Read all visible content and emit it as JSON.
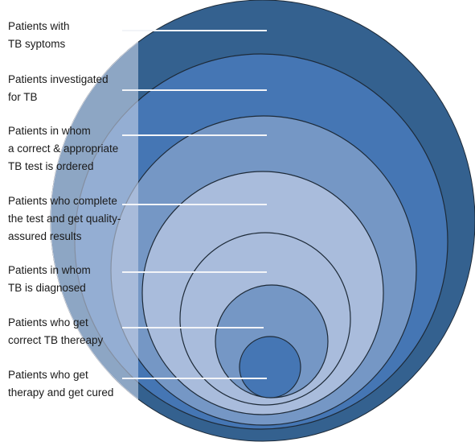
{
  "stages": [
    {
      "label": "Patients with\nTB syptoms",
      "color": "#34618f"
    },
    {
      "label": "Patients investigated\nfor TB",
      "color": "#4576b4"
    },
    {
      "label": "Patients in whom\na correct & appropriate\nTB test is ordered",
      "color": "#7597c5"
    },
    {
      "label": "Patients who complete\nthe test and get quality-\nassured results",
      "color": "#a9bcdc"
    },
    {
      "label": "Patients in whom\nTB is diagnosed",
      "color": "#a9bcdc"
    },
    {
      "label": "Patients who get\ncorrect TB thereapy",
      "color": "#7597c5"
    },
    {
      "label": "Patients who get\ntherapy and get cured",
      "color": "#4576b4"
    }
  ],
  "overlay_color": "#c9d3e8",
  "leader_color": "#f2f4f8"
}
